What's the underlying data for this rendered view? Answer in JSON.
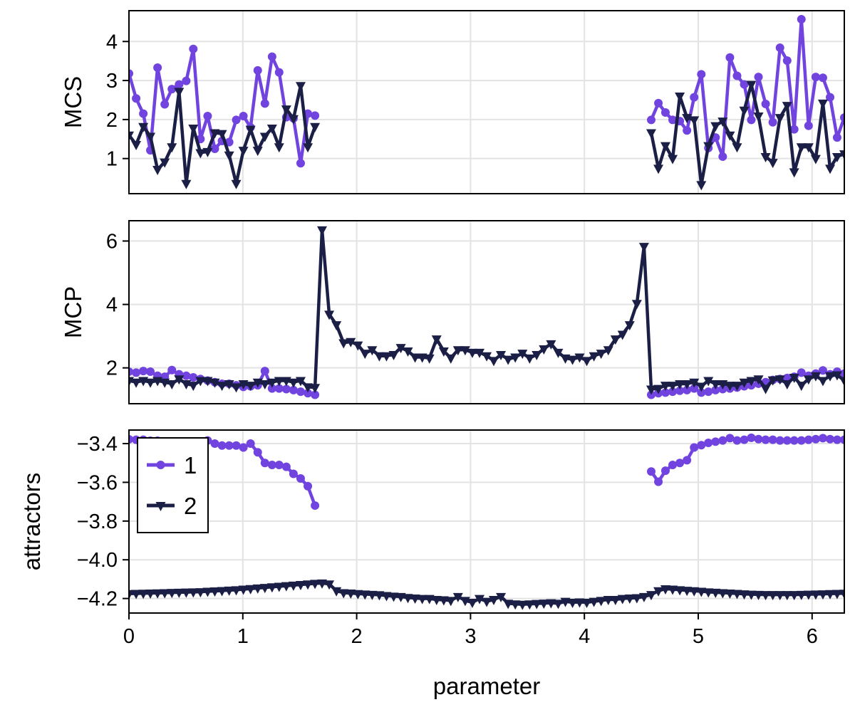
{
  "colors": {
    "series_1": "#7144E0",
    "series_2": "#1B1F46",
    "grid": "#E3E3E3",
    "frame": "#000000"
  },
  "chart_data": {
    "type": "line",
    "xlabel": "parameter",
    "xlim": [
      0,
      6.283
    ],
    "xticks": [
      0,
      1,
      2,
      3,
      4,
      5,
      6
    ],
    "xtick_labels": [
      "0",
      "1",
      "2",
      "3",
      "4",
      "5",
      "6"
    ],
    "grid": true,
    "legend": {
      "placement": "top-left of bottom panel",
      "entries": [
        {
          "label": "1",
          "marker": "circle"
        },
        {
          "label": "2",
          "marker": "triangle-down"
        }
      ]
    },
    "x": [
      0,
      0.063,
      0.126,
      0.188,
      0.251,
      0.314,
      0.377,
      0.44,
      0.503,
      0.565,
      0.628,
      0.691,
      0.754,
      0.817,
      0.88,
      0.942,
      1.005,
      1.068,
      1.131,
      1.194,
      1.257,
      1.319,
      1.382,
      1.445,
      1.508,
      1.571,
      1.634,
      1.696,
      1.759,
      1.822,
      1.885,
      1.948,
      2.011,
      2.073,
      2.136,
      2.199,
      2.262,
      2.325,
      2.388,
      2.45,
      2.513,
      2.576,
      2.639,
      2.702,
      2.765,
      2.827,
      2.89,
      2.953,
      3.016,
      3.079,
      3.142,
      3.204,
      3.267,
      3.33,
      3.393,
      3.456,
      3.519,
      3.581,
      3.644,
      3.707,
      3.77,
      3.833,
      3.896,
      3.958,
      4.021,
      4.084,
      4.147,
      4.21,
      4.273,
      4.335,
      4.398,
      4.461,
      4.524,
      4.587,
      4.65,
      4.712,
      4.775,
      4.838,
      4.901,
      4.964,
      5.027,
      5.089,
      5.152,
      5.215,
      5.278,
      5.341,
      5.404,
      5.466,
      5.529,
      5.592,
      5.655,
      5.718,
      5.781,
      5.843,
      5.906,
      5.969,
      6.032,
      6.095,
      6.158,
      6.22,
      6.283
    ],
    "panels": [
      {
        "ylabel": "MCS",
        "ylim": [
          0.1,
          4.79
        ],
        "yticks": [
          1,
          2,
          3,
          4
        ],
        "ytick_labels": [
          "1",
          "2",
          "3",
          "4"
        ],
        "series": [
          {
            "name": "1",
            "values": [
              3.18,
              2.54,
              2.15,
              1.21,
              3.33,
              2.39,
              2.78,
              2.9,
              2.99,
              3.81,
              1.5,
              2.09,
              1.25,
              1.45,
              1.42,
              1.99,
              2.09,
              1.8,
              3.26,
              2.41,
              3.61,
              3.21,
              2.06,
              2.03,
              0.88,
              2.15,
              2.1,
              null,
              null,
              null,
              null,
              null,
              null,
              null,
              null,
              null,
              null,
              null,
              null,
              null,
              null,
              null,
              null,
              null,
              null,
              null,
              null,
              null,
              null,
              null,
              null,
              null,
              null,
              null,
              null,
              null,
              null,
              null,
              null,
              null,
              null,
              null,
              null,
              null,
              null,
              null,
              null,
              null,
              null,
              null,
              null,
              null,
              null,
              1.99,
              2.42,
              2.18,
              1.99,
              1.96,
              1.72,
              2.57,
              3.16,
              1.27,
              1.54,
              1.05,
              3.59,
              3.12,
              2.9,
              1.99,
              3.09,
              2.4,
              1.93,
              3.84,
              3.51,
              1.75,
              4.57,
              1.84,
              3.09,
              3.07,
              2.57,
              1.54,
              2.05
            ]
          },
          {
            "name": "2",
            "values": [
              1.6,
              1.36,
              1.82,
              1.57,
              0.72,
              0.91,
              1.3,
              2.72,
              0.36,
              1.78,
              1.15,
              1.18,
              1.66,
              1.64,
              1.09,
              0.36,
              1.21,
              1.75,
              1.21,
              1.57,
              1.78,
              1.3,
              2.27,
              2.02,
              2.87,
              1.3,
              1.82,
              null,
              null,
              null,
              null,
              null,
              null,
              null,
              null,
              null,
              null,
              null,
              null,
              null,
              null,
              null,
              null,
              null,
              null,
              null,
              null,
              null,
              null,
              null,
              null,
              null,
              null,
              null,
              null,
              null,
              null,
              null,
              null,
              null,
              null,
              null,
              null,
              null,
              null,
              null,
              null,
              null,
              null,
              null,
              null,
              null,
              null,
              1.66,
              0.75,
              1.33,
              1.0,
              2.6,
              2.05,
              1.99,
              0.33,
              1.33,
              1.84,
              1.96,
              1.6,
              1.3,
              2.24,
              2.9,
              2.09,
              1.05,
              0.9,
              2.05,
              2.36,
              0.66,
              1.3,
              1.3,
              1.0,
              2.42,
              0.75,
              1.05,
              1.12
            ]
          }
        ]
      },
      {
        "ylabel": "MCP",
        "ylim": [
          0.87,
          6.64
        ],
        "yticks": [
          2,
          4,
          6
        ],
        "ytick_labels": [
          "2",
          "4",
          "6"
        ],
        "series": [
          {
            "name": "1",
            "values": [
              1.88,
              1.85,
              1.9,
              1.88,
              1.75,
              1.72,
              1.93,
              1.8,
              1.75,
              1.7,
              1.65,
              1.6,
              1.55,
              1.5,
              1.5,
              1.45,
              1.4,
              1.42,
              1.45,
              1.9,
              1.35,
              1.35,
              1.33,
              1.3,
              1.25,
              1.2,
              1.15,
              null,
              null,
              null,
              null,
              null,
              null,
              null,
              null,
              null,
              null,
              null,
              null,
              null,
              null,
              null,
              null,
              null,
              null,
              null,
              null,
              null,
              null,
              null,
              null,
              null,
              null,
              null,
              null,
              null,
              null,
              null,
              null,
              null,
              null,
              null,
              null,
              null,
              null,
              null,
              null,
              null,
              null,
              null,
              null,
              null,
              null,
              1.15,
              1.2,
              1.22,
              1.25,
              1.28,
              1.3,
              1.35,
              1.22,
              1.25,
              1.3,
              1.33,
              1.35,
              1.38,
              1.42,
              1.45,
              1.5,
              1.55,
              1.62,
              1.65,
              1.68,
              1.72,
              1.85,
              1.75,
              1.82,
              1.92,
              1.8,
              1.88,
              1.82
            ]
          },
          {
            "name": "2",
            "values": [
              1.6,
              1.55,
              1.6,
              1.55,
              1.6,
              1.55,
              1.5,
              1.65,
              1.5,
              1.45,
              1.6,
              1.6,
              1.55,
              1.45,
              1.5,
              1.4,
              1.5,
              1.45,
              1.55,
              1.5,
              1.55,
              1.6,
              1.6,
              1.55,
              1.6,
              1.4,
              1.38,
              6.35,
              3.69,
              3.36,
              2.79,
              2.83,
              2.72,
              2.46,
              2.57,
              2.38,
              2.38,
              2.42,
              2.64,
              2.53,
              2.34,
              2.34,
              2.31,
              2.91,
              2.53,
              2.31,
              2.57,
              2.57,
              2.49,
              2.49,
              2.38,
              2.23,
              2.42,
              2.27,
              2.34,
              2.46,
              2.31,
              2.42,
              2.6,
              2.76,
              2.49,
              2.31,
              2.27,
              2.34,
              2.23,
              2.38,
              2.46,
              2.57,
              2.91,
              3.06,
              3.36,
              4.03,
              5.83,
              1.33,
              1.35,
              1.45,
              1.45,
              1.5,
              1.5,
              1.55,
              1.42,
              1.6,
              1.5,
              1.5,
              1.45,
              1.45,
              1.55,
              1.6,
              1.65,
              1.35,
              1.62,
              1.65,
              1.5,
              1.7,
              1.45,
              1.65,
              1.75,
              1.6,
              1.75,
              1.78,
              1.6
            ]
          }
        ]
      },
      {
        "ylabel": "attractors",
        "ylim": [
          -4.275,
          -3.33
        ],
        "yticks": [
          -4.2,
          -4.0,
          -3.8,
          -3.6,
          -3.4
        ],
        "ytick_labels": [
          "−4.2",
          "−4.0",
          "−3.8",
          "−3.6",
          "−3.4"
        ],
        "series": [
          {
            "name": "1",
            "values": [
              -3.378,
              -3.38,
              -3.38,
              -3.385,
              -3.385,
              -3.39,
              -3.39,
              -3.39,
              -3.39,
              -3.39,
              -3.39,
              -3.384,
              -3.4,
              -3.41,
              -3.41,
              -3.41,
              -3.42,
              -3.4,
              -3.445,
              -3.5,
              -3.51,
              -3.51,
              -3.52,
              -3.556,
              -3.58,
              -3.62,
              -3.72,
              null,
              null,
              null,
              null,
              null,
              null,
              null,
              null,
              null,
              null,
              null,
              null,
              null,
              null,
              null,
              null,
              null,
              null,
              null,
              null,
              null,
              null,
              null,
              null,
              null,
              null,
              null,
              null,
              null,
              null,
              null,
              null,
              null,
              null,
              null,
              null,
              null,
              null,
              null,
              null,
              null,
              null,
              null,
              null,
              null,
              null,
              -3.544,
              -3.597,
              -3.54,
              -3.51,
              -3.5,
              -3.486,
              -3.42,
              -3.408,
              -3.396,
              -3.39,
              -3.384,
              -3.372,
              -3.384,
              -3.38,
              -3.37,
              -3.377,
              -3.38,
              -3.38,
              -3.384,
              -3.384,
              -3.384,
              -3.384,
              -3.38,
              -3.377,
              -3.372,
              -3.377,
              -3.38,
              -3.38
            ]
          },
          {
            "name": "2",
            "values": [
              -4.175,
              -4.174,
              -4.173,
              -4.172,
              -4.171,
              -4.17,
              -4.169,
              -4.168,
              -4.167,
              -4.166,
              -4.165,
              -4.163,
              -4.161,
              -4.159,
              -4.157,
              -4.155,
              -4.152,
              -4.149,
              -4.146,
              -4.143,
              -4.14,
              -4.137,
              -4.134,
              -4.131,
              -4.128,
              -4.125,
              -4.122,
              -4.12,
              -4.125,
              -4.16,
              -4.17,
              -4.172,
              -4.175,
              -4.177,
              -4.179,
              -4.181,
              -4.185,
              -4.188,
              -4.19,
              -4.195,
              -4.198,
              -4.2,
              -4.2,
              -4.205,
              -4.207,
              -4.21,
              -4.19,
              -4.21,
              -4.22,
              -4.2,
              -4.215,
              -4.205,
              -4.19,
              -4.225,
              -4.228,
              -4.23,
              -4.228,
              -4.226,
              -4.224,
              -4.222,
              -4.225,
              -4.215,
              -4.22,
              -4.218,
              -4.22,
              -4.215,
              -4.21,
              -4.205,
              -4.205,
              -4.2,
              -4.198,
              -4.196,
              -4.19,
              -4.18,
              -4.16,
              -4.15,
              -4.152,
              -4.155,
              -4.158,
              -4.16,
              -4.163,
              -4.166,
              -4.168,
              -4.17,
              -4.172,
              -4.174,
              -4.176,
              -4.178,
              -4.179,
              -4.18,
              -4.18,
              -4.18,
              -4.18,
              -4.18,
              -4.179,
              -4.178,
              -4.177,
              -4.176,
              -4.175,
              -4.174,
              -4.173
            ]
          }
        ]
      }
    ]
  }
}
